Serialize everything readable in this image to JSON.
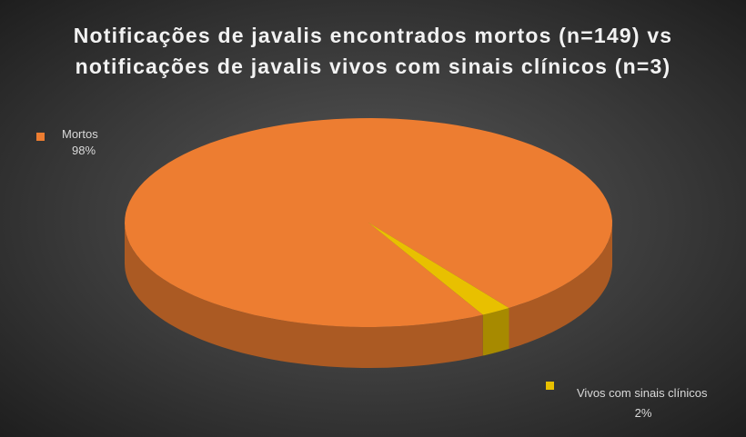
{
  "chart_data": {
    "type": "pie3d",
    "title": "Notificações de javalis encontrados mortos  (n=149) vs notificações de javalis vivos com sinais clínicos (n=3)",
    "categories": [
      "Mortos",
      "Vivos com sinais clínicos"
    ],
    "values": [
      98,
      2
    ],
    "value_labels": [
      "98%",
      "2%"
    ],
    "colors": [
      "#ed7d31",
      "#e8c000"
    ]
  }
}
